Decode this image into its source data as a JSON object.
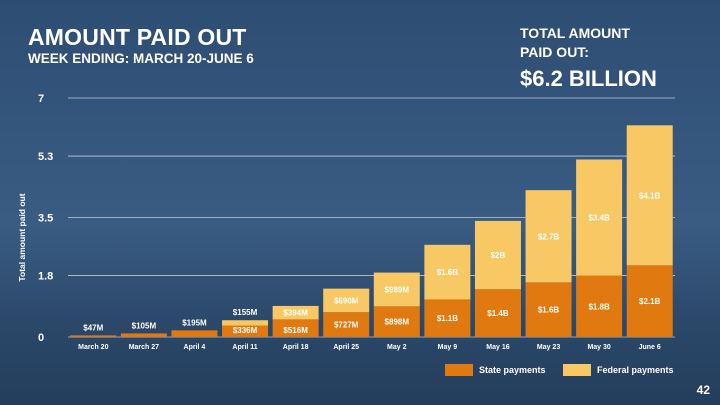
{
  "title": "AMOUNT PAID OUT",
  "subtitle": "WEEK ENDING: MARCH 20-JUNE 6",
  "total": {
    "label": "TOTAL AMOUNT PAID OUT:",
    "value": "$6.2 BILLION"
  },
  "page_number": "42",
  "colors": {
    "state": "#e07a10",
    "federal": "#f7c863",
    "grid": "#d6dde6",
    "text": "#ffffff"
  },
  "chart_data": {
    "type": "bar",
    "stacked": true,
    "ylabel": "Total amount paid out",
    "ylim": [
      0,
      7
    ],
    "yticks": [
      0,
      1.8,
      3.5,
      5.3,
      7
    ],
    "ytick_labels": [
      "0",
      "1.8",
      "3.5",
      "5.3",
      "7"
    ],
    "grid": true,
    "legend_position": "bottom-right",
    "categories": [
      "March 20",
      "March 27",
      "April 4",
      "April 11",
      "April 18",
      "April 25",
      "May 2",
      "May 9",
      "May 16",
      "May 23",
      "May 30",
      "June 6"
    ],
    "series": [
      {
        "name": "State payments",
        "color": "#e07a10",
        "values": [
          0.047,
          0.105,
          0.195,
          0.336,
          0.516,
          0.727,
          0.898,
          1.1,
          1.4,
          1.6,
          1.8,
          2.1
        ],
        "labels": [
          "$47M",
          "$105M",
          "$195M",
          "$336M",
          "$516M",
          "$727M",
          "$898M",
          "$1.1B",
          "$1.4B",
          "$1.6B",
          "$1.8B",
          "$2.1B"
        ]
      },
      {
        "name": "Federal payments",
        "color": "#f7c863",
        "values": [
          0,
          0,
          0,
          0.155,
          0.394,
          0.69,
          0.989,
          1.6,
          2.0,
          2.7,
          3.4,
          4.1
        ],
        "labels": [
          "",
          "",
          "",
          "$155M",
          "$394M",
          "$690M",
          "$989M",
          "$1.6B",
          "$2B",
          "$2.7B",
          "$3.4B",
          "$4.1B"
        ]
      }
    ]
  }
}
